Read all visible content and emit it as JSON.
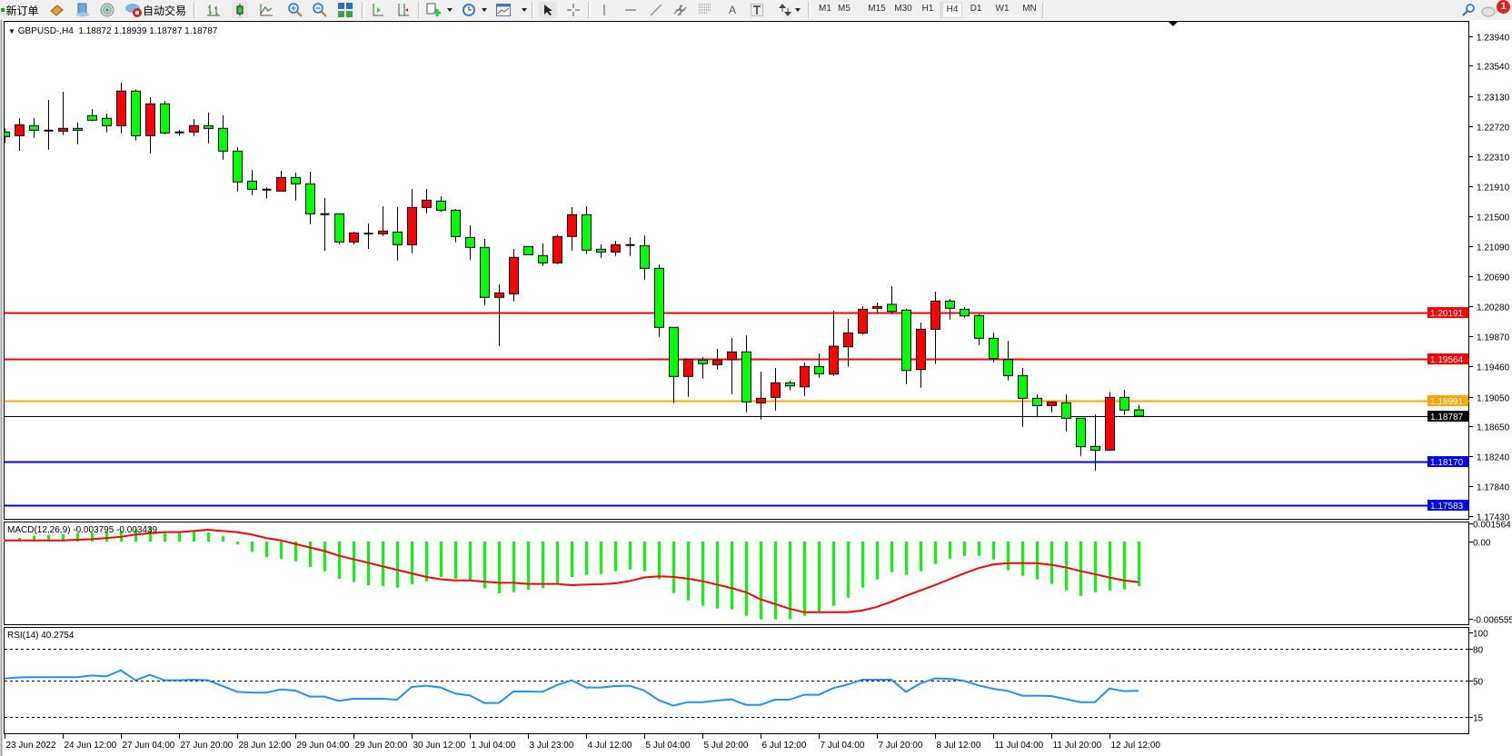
{
  "toolbar": {
    "new_order": {
      "label": "新订单",
      "icon": "new-order-icon"
    },
    "market_watch_icon": "book-icon",
    "navigator_icon": "accounts-icon",
    "signals_icon": "signal-icon",
    "auto_trading": {
      "label": "自动交易",
      "icon": "auto-trading-icon"
    },
    "chart_tools": [
      "bar-chart-icon",
      "candlestick-icon",
      "line-chart-icon",
      "zoom-in-icon",
      "zoom-out-icon",
      "tile-windows-icon",
      "auto-scroll-icon",
      "chart-shift-icon",
      "new-chart-icon",
      "periods-clock-icon",
      "template-icon"
    ],
    "draw_tools": [
      "cursor-icon",
      "crosshair-icon",
      "vertical-line-icon",
      "horizontal-line-icon",
      "trendline-icon",
      "equidistant-channel-icon",
      "fibonacci-icon",
      "text-icon",
      "text-label-icon",
      "arrows-icon"
    ],
    "text_tool_label": "A",
    "timeframes": [
      "M1",
      "M5",
      "M15",
      "M30",
      "H1",
      "H4",
      "D1",
      "W1",
      "MN"
    ],
    "active_timeframe": "H4",
    "notification_count": "1"
  },
  "chart": {
    "symbol": "GBPUSD-,H4",
    "ohlc_text": "1.18872 1.18939 1.18787 1.18787",
    "macd_label": "MACD(12,26,9) -0.003795 -0.003439",
    "rsi_label": "RSI(14) 40.2754",
    "colors": {
      "bull": "#ff0000",
      "bear": "#00ff00",
      "macd_hist": "#00ff00",
      "macd_signal": "#ff0000",
      "rsi": "#1e90ff"
    }
  },
  "chart_data": {
    "type": "candlestick",
    "fields": [
      "open",
      "high",
      "low",
      "close"
    ],
    "candles": [
      [
        1.22642,
        1.22691,
        1.22494,
        1.2258
      ],
      [
        1.22592,
        1.2283,
        1.22386,
        1.2274
      ],
      [
        1.22728,
        1.2283,
        1.22563,
        1.22666
      ],
      [
        1.22661,
        1.23077,
        1.22402,
        1.22661
      ],
      [
        1.22654,
        1.23188,
        1.226,
        1.22691
      ],
      [
        1.22691,
        1.22769,
        1.22476,
        1.22666
      ],
      [
        1.22864,
        1.22954,
        1.2279,
        1.22802
      ],
      [
        1.22827,
        1.22892,
        1.22637,
        1.22728
      ],
      [
        1.22728,
        1.23311,
        1.22624,
        1.23197
      ],
      [
        1.23197,
        1.23221,
        1.22526,
        1.22592
      ],
      [
        1.22592,
        1.23114,
        1.22353,
        1.23024
      ],
      [
        1.23024,
        1.23061,
        1.22612,
        1.22629
      ],
      [
        1.22637,
        1.2267,
        1.22587,
        1.22637
      ],
      [
        1.22642,
        1.22818,
        1.22587,
        1.22728
      ],
      [
        1.22728,
        1.22904,
        1.22489,
        1.22691
      ],
      [
        1.22691,
        1.22867,
        1.22267,
        1.22383
      ],
      [
        1.22383,
        1.22436,
        1.21835,
        1.21964
      ],
      [
        1.21976,
        1.22128,
        1.21786,
        1.21865
      ],
      [
        1.2186,
        1.2189,
        1.21737,
        1.2186
      ],
      [
        1.2184,
        1.22115,
        1.2184,
        1.22025
      ],
      [
        1.22025,
        1.22091,
        1.21712,
        1.21939
      ],
      [
        1.21939,
        1.22103,
        1.21391,
        1.21532
      ],
      [
        1.21527,
        1.21745,
        1.2103,
        1.21527
      ],
      [
        1.21532,
        1.21532,
        1.2112,
        1.2115
      ],
      [
        1.2115,
        1.21289,
        1.2112,
        1.21273
      ],
      [
        1.21264,
        1.214,
        1.21055,
        1.21264
      ],
      [
        1.21261,
        1.21634,
        1.21231,
        1.21298
      ],
      [
        1.21285,
        1.21622,
        1.20898,
        1.21113
      ],
      [
        1.21113,
        1.21869,
        1.20997,
        1.21618
      ],
      [
        1.21618,
        1.21869,
        1.21539,
        1.21717
      ],
      [
        1.21705,
        1.2177,
        1.21557,
        1.21581
      ],
      [
        1.21581,
        1.21597,
        1.21145,
        1.21224
      ],
      [
        1.21211,
        1.21375,
        1.2091,
        1.21076
      ],
      [
        1.21076,
        1.2119,
        1.20294,
        1.20398
      ],
      [
        1.20398,
        1.20574,
        1.19739,
        1.20459
      ],
      [
        1.20447,
        1.21055,
        1.20343,
        1.2094
      ],
      [
        1.21088,
        1.21088,
        1.20977,
        1.20977
      ],
      [
        1.20965,
        1.21129,
        1.20824,
        1.20866
      ],
      [
        1.20866,
        1.21248,
        1.20849,
        1.21224
      ],
      [
        1.21224,
        1.21622,
        1.21034,
        1.2152
      ],
      [
        1.2152,
        1.21634,
        1.20985,
        1.21039
      ],
      [
        1.21051,
        1.21116,
        1.20935,
        1.21014
      ],
      [
        1.21014,
        1.21166,
        1.2096,
        1.21113
      ],
      [
        1.21108,
        1.21215,
        1.2096,
        1.21108
      ],
      [
        1.211,
        1.2124,
        1.20639,
        1.20792
      ],
      [
        1.20792,
        1.20845,
        1.19862,
        1.19991
      ],
      [
        1.19991,
        1.19991,
        1.18962,
        1.19325
      ],
      [
        1.19325,
        1.19559,
        1.19049,
        1.19559
      ],
      [
        1.19547,
        1.19588,
        1.19295,
        1.19498
      ],
      [
        1.19485,
        1.19699,
        1.19419,
        1.19547
      ],
      [
        1.19551,
        1.19846,
        1.19086,
        1.19658
      ],
      [
        1.19658,
        1.19883,
        1.18839,
        1.1898
      ],
      [
        1.18967,
        1.1939,
        1.1874,
        1.19029
      ],
      [
        1.19041,
        1.1944,
        1.18864,
        1.19239
      ],
      [
        1.19239,
        1.19267,
        1.19135,
        1.19197
      ],
      [
        1.19184,
        1.19514,
        1.19061,
        1.1946
      ],
      [
        1.1946,
        1.19637,
        1.19308,
        1.19362
      ],
      [
        1.19357,
        1.20216,
        1.19332,
        1.19735
      ],
      [
        1.19727,
        1.20105,
        1.19456,
        1.19917
      ],
      [
        1.19912,
        1.20278,
        1.19892,
        1.20237
      ],
      [
        1.2025,
        1.20327,
        1.20176,
        1.20274
      ],
      [
        1.20303,
        1.20549,
        1.20171,
        1.20208
      ],
      [
        1.20225,
        1.20241,
        1.19221,
        1.19406
      ],
      [
        1.19419,
        1.20056,
        1.19172,
        1.19966
      ],
      [
        1.19966,
        1.20475,
        1.19493,
        1.20348
      ],
      [
        1.20348,
        1.20373,
        1.20097,
        1.2025
      ],
      [
        1.20237,
        1.20266,
        1.20121,
        1.20146
      ],
      [
        1.20151,
        1.20179,
        1.19748,
        1.19843
      ],
      [
        1.19843,
        1.1992,
        1.19517,
        1.19567
      ],
      [
        1.19554,
        1.19806,
        1.19271,
        1.19337
      ],
      [
        1.19337,
        1.1944,
        1.18642,
        1.19029
      ],
      [
        1.19029,
        1.19082,
        1.18786,
        1.1893
      ],
      [
        1.1893,
        1.1898,
        1.18839,
        1.1898
      ],
      [
        1.18967,
        1.19082,
        1.1858,
        1.18758
      ],
      [
        1.18758,
        1.18758,
        1.18247,
        1.18371
      ],
      [
        1.18376,
        1.18811,
        1.1805,
        1.18326
      ],
      [
        1.18326,
        1.19115,
        1.18326,
        1.19041
      ],
      [
        1.19041,
        1.19144,
        1.18802,
        1.18869
      ],
      [
        1.18872,
        1.18939,
        1.18787,
        1.18787
      ]
    ],
    "time_labels": [
      "23 Jun 2022",
      "24 Jun 12:00",
      "27 Jun 04:00",
      "27 Jun 20:00",
      "28 Jun 12:00",
      "29 Jun 04:00",
      "29 Jun 20:00",
      "30 Jun 12:00",
      "1 Jul 04:00",
      "3 Jul 23:00",
      "4 Jul 12:00",
      "5 Jul 04:00",
      "5 Jul 20:00",
      "6 Jul 12:00",
      "7 Jul 04:00",
      "7 Jul 20:00",
      "8 Jul 12:00",
      "11 Jul 04:00",
      "11 Jul 20:00",
      "12 Jul 12:00"
    ],
    "price_axis": {
      "min": 1.1743,
      "max": 1.2394,
      "ticks": [
        "1.23940",
        "1.23540",
        "1.23130",
        "1.22720",
        "1.22310",
        "1.21910",
        "1.21500",
        "1.21090",
        "1.20690",
        "1.20280",
        "1.19870",
        "1.19460",
        "1.19050",
        "1.18650",
        "1.18240",
        "1.17840",
        "1.17430"
      ]
    },
    "horizontal_lines": [
      {
        "price": "1.20191",
        "color": "#ff0000"
      },
      {
        "price": "1.19564",
        "color": "#ff0000"
      },
      {
        "price": "1.18991",
        "color": "#ffa500"
      },
      {
        "price": "1.18787",
        "color": "#000000"
      },
      {
        "price": "1.18170",
        "color": "#0000ff"
      },
      {
        "price": "1.17583",
        "color": "#0000ff"
      }
    ],
    "macd": {
      "axis_ticks": [
        "0.001564",
        "0.00",
        "-0.006555"
      ],
      "histogram": [
        0.0002,
        0.00031,
        0.00049,
        0.00057,
        0.00064,
        0.00069,
        0.00075,
        0.0008,
        0.0009,
        0.00105,
        0.00123,
        0.00085,
        0.00085,
        0.00085,
        0.00077,
        0.00046,
        -0.00023,
        -0.00087,
        -0.00131,
        -0.00146,
        -0.00167,
        -0.00216,
        -0.00252,
        -0.00316,
        -0.00344,
        -0.0037,
        -0.00378,
        -0.00391,
        -0.00362,
        -0.00337,
        -0.00301,
        -0.00316,
        -0.00329,
        -0.00398,
        -0.00439,
        -0.00429,
        -0.00409,
        -0.00396,
        -0.00362,
        -0.00301,
        -0.00283,
        -0.00275,
        -0.00252,
        -0.00237,
        -0.00252,
        -0.00319,
        -0.00437,
        -0.00499,
        -0.00545,
        -0.00568,
        -0.00576,
        -0.0063,
        -0.00661,
        -0.00661,
        -0.00661,
        -0.0063,
        -0.00601,
        -0.00545,
        -0.00476,
        -0.00391,
        -0.00321,
        -0.0026,
        -0.00283,
        -0.00252,
        -0.0019,
        -0.00144,
        -0.00121,
        -0.00121,
        -0.00152,
        -0.00244,
        -0.00291,
        -0.00321,
        -0.0036,
        -0.00414,
        -0.0046,
        -0.00429,
        -0.00414,
        -0.00406,
        -0.003795
      ],
      "signal": [
        0.0001,
        0.0001,
        0.0001,
        0.0001,
        0.0001,
        0.00015,
        0.0002,
        0.0003,
        0.0004,
        0.0006,
        0.0007,
        0.0008,
        0.0008,
        0.0009,
        0.001,
        0.0009,
        0.0008,
        0.0006,
        0.0003,
        0.0001,
        -0.0002,
        -0.0005,
        -0.0008,
        -0.0012,
        -0.0015,
        -0.0018,
        -0.0021,
        -0.0024,
        -0.0027,
        -0.003,
        -0.0032,
        -0.0033,
        -0.0033,
        -0.0034,
        -0.0035,
        -0.0035,
        -0.0036,
        -0.0036,
        -0.0036,
        -0.0037,
        -0.00365,
        -0.00362,
        -0.00355,
        -0.00335,
        -0.00305,
        -0.00295,
        -0.003,
        -0.00315,
        -0.00336,
        -0.00365,
        -0.00395,
        -0.0043,
        -0.0049,
        -0.0053,
        -0.0057,
        -0.006,
        -0.006,
        -0.006,
        -0.006,
        -0.00585,
        -0.00555,
        -0.0051,
        -0.0046,
        -0.00415,
        -0.0037,
        -0.0032,
        -0.0027,
        -0.00225,
        -0.00195,
        -0.00183,
        -0.00183,
        -0.00183,
        -0.00198,
        -0.0022,
        -0.0025,
        -0.00277,
        -0.00305,
        -0.0033,
        -0.003439
      ]
    },
    "rsi": {
      "axis_ticks": [
        "100",
        "80",
        "50",
        "15"
      ],
      "levels": [
        80,
        50,
        15
      ],
      "values": [
        52,
        53,
        53.2,
        53.2,
        53.2,
        53.2,
        54.9,
        54,
        59.8,
        50.3,
        55.5,
        50.3,
        50.3,
        50.9,
        50.3,
        44.8,
        39.3,
        38.5,
        38.5,
        41.6,
        40.5,
        34.7,
        34.7,
        30.7,
        32.7,
        32.7,
        32.7,
        31.8,
        43.9,
        45.1,
        43.4,
        37.6,
        35.9,
        28.7,
        28.7,
        39.6,
        39.6,
        39.3,
        45.7,
        50.3,
        43.4,
        43.4,
        44.8,
        45.1,
        40.5,
        31.3,
        26.1,
        29.5,
        29.5,
        31,
        32.1,
        26.9,
        26.9,
        31.8,
        31.8,
        36.5,
        36.5,
        42.8,
        46.3,
        50.9,
        50.9,
        50.9,
        39.3,
        47.4,
        52,
        51.7,
        49.7,
        45.4,
        42.2,
        40.2,
        35.6,
        35.6,
        35.3,
        32.4,
        29.5,
        29.5,
        42.5,
        39.9,
        40.2754
      ]
    }
  }
}
